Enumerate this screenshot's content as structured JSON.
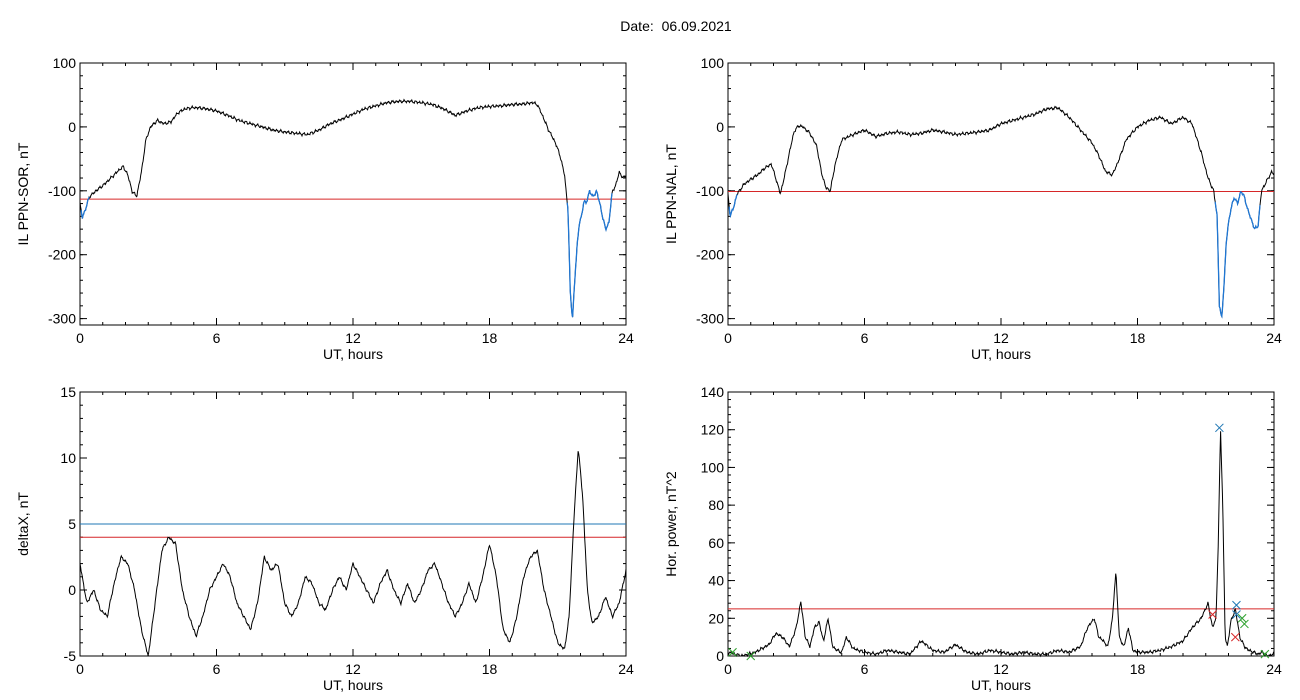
{
  "header": {
    "date_label": "Date:",
    "date_value": "06.09.2021"
  },
  "chart_data": [
    {
      "type": "line",
      "xlabel": "UT, hours",
      "ylabel": "IL PPN-SOR, nT",
      "xlim": [
        0,
        24
      ],
      "ylim": [
        -310,
        100
      ],
      "xticks": [
        0,
        6,
        12,
        18,
        24
      ],
      "yticks": [
        -300,
        -200,
        -100,
        0,
        100
      ],
      "threshold": {
        "value": -113,
        "color": "#d62728"
      },
      "highlight_color": "#1f77d4",
      "highlight_ranges": [
        [
          0.05,
          0.4
        ],
        [
          21.4,
          23.4
        ]
      ],
      "series": [
        {
          "x": [
            0,
            0.1,
            0.25,
            0.4,
            0.7,
            1.0,
            1.3,
            1.5,
            1.7,
            1.9,
            2.1,
            2.3,
            2.5,
            2.7,
            2.9,
            3.1,
            3.4,
            3.7,
            4.0,
            4.3,
            4.6,
            4.9,
            5.2,
            5.6,
            6.0,
            6.5,
            7.0,
            7.5,
            8.0,
            8.5,
            9.0,
            9.5,
            10.0,
            10.5,
            11.0,
            11.5,
            12.0,
            12.5,
            13.0,
            13.5,
            14.0,
            14.5,
            15.0,
            15.5,
            16.0,
            16.5,
            17.0,
            17.5,
            18.0,
            18.5,
            19.0,
            19.5,
            19.9,
            20.1,
            20.3,
            20.6,
            20.9,
            21.1,
            21.3,
            21.45,
            21.55,
            21.65,
            21.75,
            21.85,
            21.95,
            22.05,
            22.15,
            22.25,
            22.4,
            22.55,
            22.7,
            22.85,
            23.0,
            23.1,
            23.25,
            23.4,
            23.55,
            23.7,
            23.85,
            24.0
          ],
          "y": [
            -120,
            -142,
            -128,
            -110,
            -100,
            -92,
            -82,
            -75,
            -68,
            -62,
            -75,
            -102,
            -108,
            -70,
            -20,
            0,
            10,
            5,
            8,
            22,
            28,
            30,
            30,
            28,
            25,
            18,
            10,
            5,
            0,
            -5,
            -8,
            -10,
            -12,
            -5,
            5,
            12,
            20,
            28,
            33,
            38,
            40,
            40,
            38,
            35,
            28,
            18,
            25,
            30,
            32,
            33,
            35,
            36,
            38,
            35,
            20,
            -5,
            -25,
            -45,
            -75,
            -130,
            -260,
            -300,
            -240,
            -185,
            -150,
            -140,
            -115,
            -120,
            -100,
            -110,
            -100,
            -120,
            -145,
            -160,
            -150,
            -100,
            -92,
            -70,
            -80,
            -75
          ]
        }
      ]
    },
    {
      "type": "line",
      "xlabel": "UT, hours",
      "ylabel": "IL PPN-NAL, nT",
      "xlim": [
        0,
        24
      ],
      "ylim": [
        -310,
        100
      ],
      "xticks": [
        0,
        6,
        12,
        18,
        24
      ],
      "yticks": [
        -300,
        -200,
        -100,
        0,
        100
      ],
      "threshold": {
        "value": -101,
        "color": "#d62728"
      },
      "highlight_color": "#1f77d4",
      "highlight_ranges": [
        [
          0.05,
          0.4
        ],
        [
          21.4,
          23.4
        ]
      ],
      "series": [
        {
          "x": [
            0,
            0.1,
            0.25,
            0.4,
            0.7,
            1.0,
            1.3,
            1.6,
            1.9,
            2.1,
            2.3,
            2.5,
            2.7,
            2.9,
            3.1,
            3.3,
            3.6,
            3.9,
            4.1,
            4.3,
            4.5,
            4.7,
            5.0,
            5.5,
            6.0,
            6.5,
            7.0,
            7.5,
            8.0,
            8.5,
            9.0,
            9.5,
            10.0,
            10.5,
            11.0,
            11.5,
            12.0,
            12.5,
            13.0,
            13.5,
            14.0,
            14.5,
            15.0,
            15.5,
            16.0,
            16.3,
            16.6,
            16.9,
            17.2,
            17.5,
            18.0,
            18.5,
            19.0,
            19.5,
            20.0,
            20.4,
            20.8,
            21.1,
            21.35,
            21.5,
            21.6,
            21.7,
            21.8,
            21.9,
            22.0,
            22.1,
            22.25,
            22.4,
            22.55,
            22.7,
            22.85,
            23.0,
            23.15,
            23.3,
            23.45,
            23.6,
            23.75,
            23.9,
            24.0
          ],
          "y": [
            -105,
            -140,
            -125,
            -105,
            -90,
            -82,
            -75,
            -65,
            -58,
            -80,
            -105,
            -75,
            -40,
            -8,
            2,
            0,
            -10,
            -30,
            -70,
            -95,
            -100,
            -60,
            -20,
            -12,
            -5,
            -15,
            -10,
            -8,
            -12,
            -10,
            -5,
            -8,
            -12,
            -10,
            -8,
            -5,
            5,
            10,
            15,
            20,
            28,
            30,
            15,
            -5,
            -25,
            -45,
            -70,
            -75,
            -50,
            -20,
            0,
            10,
            15,
            5,
            15,
            5,
            -40,
            -80,
            -100,
            -140,
            -280,
            -300,
            -250,
            -180,
            -150,
            -130,
            -110,
            -120,
            -100,
            -110,
            -130,
            -145,
            -160,
            -155,
            -100,
            -90,
            -80,
            -70,
            -75
          ]
        }
      ]
    },
    {
      "type": "line",
      "xlabel": "UT, hours",
      "ylabel": "deltaX, nT",
      "xlim": [
        0,
        24
      ],
      "ylim": [
        -5,
        15
      ],
      "xticks": [
        0,
        6,
        12,
        18,
        24
      ],
      "yticks": [
        -5,
        0,
        5,
        10,
        15
      ],
      "threshold_lines": [
        {
          "value": 5,
          "color": "#1f77b4"
        },
        {
          "value": 4,
          "color": "#d62728"
        }
      ],
      "series": [
        {
          "x": [
            0,
            0.3,
            0.6,
            0.9,
            1.2,
            1.5,
            1.8,
            2.1,
            2.4,
            2.7,
            3.0,
            3.3,
            3.6,
            3.9,
            4.2,
            4.5,
            4.8,
            5.1,
            5.4,
            5.7,
            6.0,
            6.3,
            6.6,
            6.9,
            7.2,
            7.5,
            7.8,
            8.1,
            8.4,
            8.7,
            9.0,
            9.3,
            9.6,
            9.9,
            10.2,
            10.5,
            10.8,
            11.1,
            11.4,
            11.7,
            12.0,
            12.3,
            12.6,
            12.9,
            13.2,
            13.5,
            13.8,
            14.1,
            14.4,
            14.7,
            15.0,
            15.3,
            15.6,
            15.9,
            16.2,
            16.5,
            16.8,
            17.1,
            17.4,
            17.7,
            18.0,
            18.3,
            18.6,
            18.9,
            19.2,
            19.5,
            19.8,
            20.1,
            20.4,
            20.7,
            21.0,
            21.3,
            21.5,
            21.7,
            21.9,
            22.1,
            22.3,
            22.5,
            22.8,
            23.1,
            23.4,
            23.7,
            24.0
          ],
          "y": [
            2,
            -1,
            0,
            -1.5,
            -2,
            0.5,
            2.5,
            2,
            0,
            -3,
            -5,
            -1,
            3,
            4,
            3.5,
            0,
            -2,
            -3.5,
            -2,
            0,
            1,
            2,
            1,
            -1,
            -2,
            -3,
            -1,
            2.5,
            1.5,
            2,
            -1,
            -2,
            -1,
            1,
            0.5,
            -1,
            -1.5,
            0,
            1,
            0,
            2,
            1,
            0,
            -1,
            0.5,
            1.5,
            0,
            -1,
            0.5,
            -1,
            0,
            1.5,
            2,
            0.5,
            -1,
            -2,
            -1,
            0.5,
            -1,
            1,
            3.5,
            1,
            -3,
            -4,
            -2,
            1,
            2.5,
            3,
            0,
            -2,
            -4,
            -4.5,
            -2,
            5,
            10.8,
            7,
            0,
            -2.5,
            -2,
            -0.5,
            -2,
            -1,
            1.5
          ]
        }
      ]
    },
    {
      "type": "line",
      "xlabel": "UT, hours",
      "ylabel": "Hor. power, nT^2",
      "xlim": [
        0,
        24
      ],
      "ylim": [
        0,
        140
      ],
      "xticks": [
        0,
        6,
        12,
        18,
        24
      ],
      "yticks": [
        0,
        20,
        40,
        60,
        80,
        100,
        120,
        140
      ],
      "threshold": {
        "value": 25,
        "color": "#d62728"
      },
      "series": [
        {
          "x": [
            0,
            0.3,
            0.6,
            0.9,
            1.2,
            1.5,
            1.8,
            2.1,
            2.4,
            2.7,
            3.0,
            3.2,
            3.4,
            3.6,
            3.8,
            4.0,
            4.2,
            4.4,
            4.6,
            4.8,
            5.0,
            5.2,
            5.5,
            6.0,
            6.5,
            7.0,
            7.5,
            8.0,
            8.5,
            9.0,
            9.5,
            10.0,
            10.5,
            11.0,
            11.5,
            12.0,
            12.5,
            13.0,
            13.5,
            14.0,
            14.5,
            15.0,
            15.5,
            15.8,
            16.1,
            16.3,
            16.5,
            16.7,
            16.9,
            17.05,
            17.2,
            17.4,
            17.6,
            17.8,
            18.0,
            18.5,
            19.0,
            19.5,
            20.0,
            20.4,
            20.8,
            21.1,
            21.3,
            21.45,
            21.55,
            21.65,
            21.75,
            21.85,
            21.95,
            22.1,
            22.3,
            22.5,
            22.7,
            22.9,
            23.1,
            23.3,
            23.5,
            23.7,
            24.0
          ],
          "y": [
            2,
            1,
            0,
            1,
            2,
            4,
            6,
            12,
            10,
            5,
            15,
            29,
            10,
            5,
            15,
            18,
            8,
            20,
            5,
            3,
            2,
            10,
            4,
            2,
            1,
            3,
            2,
            1,
            8,
            3,
            2,
            6,
            2,
            1,
            3,
            2,
            1,
            2,
            1,
            1,
            3,
            2,
            5,
            15,
            20,
            10,
            8,
            5,
            20,
            45,
            10,
            5,
            15,
            3,
            2,
            2,
            3,
            5,
            8,
            15,
            20,
            28,
            15,
            20,
            60,
            120,
            80,
            10,
            5,
            18,
            25,
            10,
            5,
            3,
            2,
            1,
            2,
            0,
            1
          ]
        }
      ],
      "markers": [
        {
          "x": 21.6,
          "y": 121,
          "color": "#1f77b4"
        },
        {
          "x": 22.35,
          "y": 27,
          "color": "#1f77b4"
        },
        {
          "x": 22.35,
          "y": 22,
          "color": "#1f77b4"
        },
        {
          "x": 22.3,
          "y": 10,
          "color": "#d62728"
        },
        {
          "x": 21.3,
          "y": 22,
          "color": "#d62728"
        },
        {
          "x": 0.2,
          "y": 2,
          "color": "#2ca02c"
        },
        {
          "x": 1.0,
          "y": 0,
          "color": "#2ca02c"
        },
        {
          "x": 22.6,
          "y": 20,
          "color": "#2ca02c"
        },
        {
          "x": 22.7,
          "y": 17,
          "color": "#2ca02c"
        },
        {
          "x": 23.6,
          "y": 1,
          "color": "#2ca02c"
        }
      ]
    }
  ]
}
